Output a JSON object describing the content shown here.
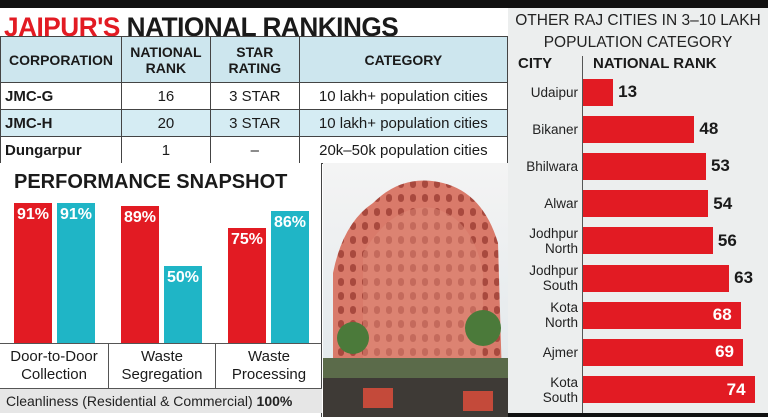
{
  "title": {
    "highlight": "JAIPUR'S",
    "rest": "NATIONAL RANKINGS"
  },
  "table": {
    "headers": [
      "CORPORATION",
      "NATIONAL RANK",
      "STAR RATING",
      "CATEGORY"
    ],
    "rows": [
      [
        "JMC-G",
        "16",
        "3 STAR",
        "10 lakh+ population cities"
      ],
      [
        "JMC-H",
        "20",
        "3 STAR",
        "10 lakh+ population cities"
      ],
      [
        "Dungarpur",
        "1",
        "–",
        "20k–50k population cities"
      ]
    ]
  },
  "chart_data": [
    {
      "type": "bar",
      "title": "PERFORMANCE SNAPSHOT",
      "categories": [
        "Door-to-Door Collection",
        "Waste Segregation",
        "Waste Processing"
      ],
      "series": [
        {
          "values": [
            91,
            89,
            75
          ],
          "labels": [
            "91%",
            "89%",
            "75%"
          ],
          "color": "#e21b23"
        },
        {
          "values": [
            91,
            50,
            86
          ],
          "labels": [
            "91%",
            "50%",
            "86%"
          ],
          "color": "#1fb5c6"
        }
      ],
      "ylim": [
        0,
        100
      ],
      "footer": {
        "label": "Cleanliness (Residential & Commercial)",
        "value": "100%"
      }
    },
    {
      "type": "bar",
      "orientation": "horizontal",
      "title": "OTHER RAJ CITIES IN 3–10 LAKH POPULATION CATEGORY",
      "xlabel": "NATIONAL RANK",
      "ylabel": "CITY",
      "categories": [
        "Udaipur",
        "Bikaner",
        "Bhilwara",
        "Alwar",
        "Jodhpur North",
        "Jodhpur South",
        "Kota North",
        "Ajmer",
        "Kota South"
      ],
      "values": [
        13,
        48,
        53,
        54,
        56,
        63,
        68,
        69,
        74
      ],
      "color": "#e21b23"
    }
  ]
}
